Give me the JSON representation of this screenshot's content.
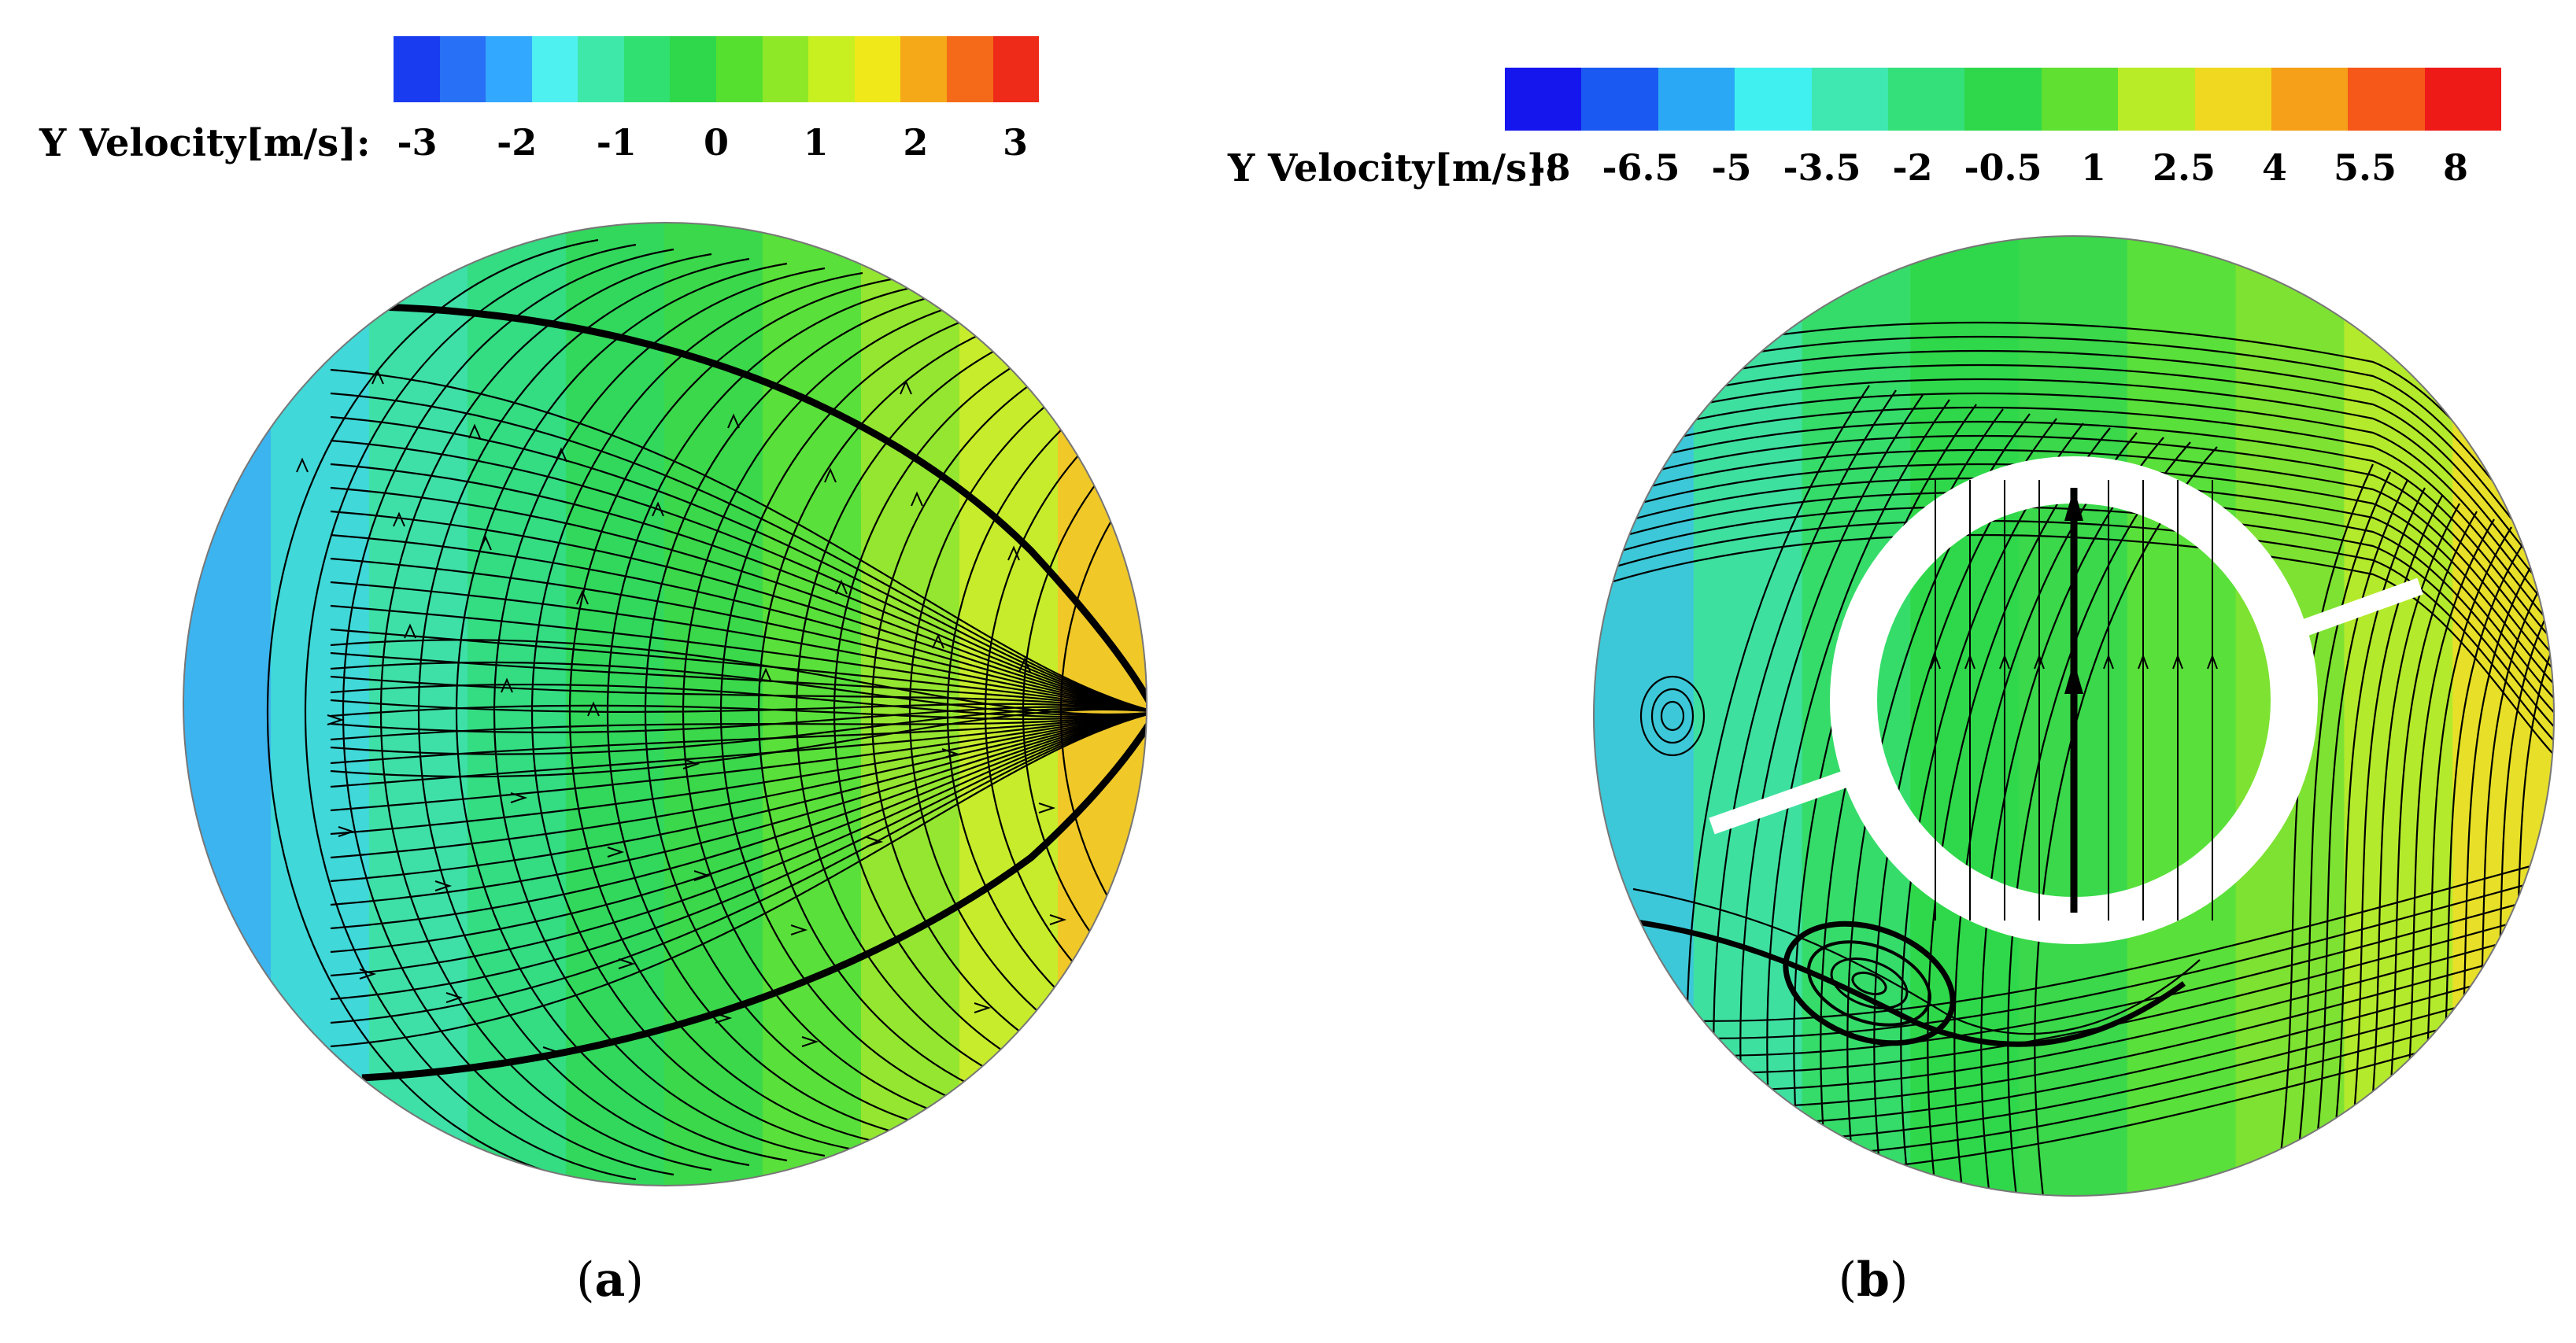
{
  "panel_a": {
    "colorbar": {
      "title": "Y Velocity[m/s]:",
      "ticks": [
        "-3",
        "-2",
        "-1",
        "0",
        "1",
        "2",
        "3"
      ],
      "colors": [
        "#1a3cf0",
        "#2870f5",
        "#33a8ff",
        "#4ff0f0",
        "#3ee8a8",
        "#30e070",
        "#2fd84a",
        "#55e030",
        "#8ee828",
        "#c8f020",
        "#f0e818",
        "#f5a818",
        "#f56a18",
        "#ee2a18"
      ]
    },
    "bands": [
      "#3cb4f0",
      "#40d8d8",
      "#3ee0a8",
      "#34dc82",
      "#32d85c",
      "#3ad84a",
      "#5ae03a",
      "#94e630",
      "#c6ec2c",
      "#f0c828"
    ],
    "caption": "a"
  },
  "panel_b": {
    "colorbar": {
      "title": "Y Velocity[m/s]:",
      "ticks": [
        "-8",
        "-6.5",
        "-5",
        "-3.5",
        "-2",
        "-0.5",
        "1",
        "2.5",
        "4",
        "5.5",
        "8"
      ],
      "colors": [
        "#1515ee",
        "#1a5af2",
        "#2aa8f5",
        "#40f0f0",
        "#3ee8b0",
        "#34e07a",
        "#2fd84a",
        "#60e030",
        "#b8ec26",
        "#f0d820",
        "#f5a018",
        "#f55818",
        "#ee1a18"
      ]
    },
    "bands": [
      "#3cc8d8",
      "#3ee0a0",
      "#36dc6a",
      "#2fd84a",
      "#3ad84a",
      "#5ae03a",
      "#7ee232",
      "#b4ea2c",
      "#e8e028"
    ],
    "caption": "b"
  }
}
